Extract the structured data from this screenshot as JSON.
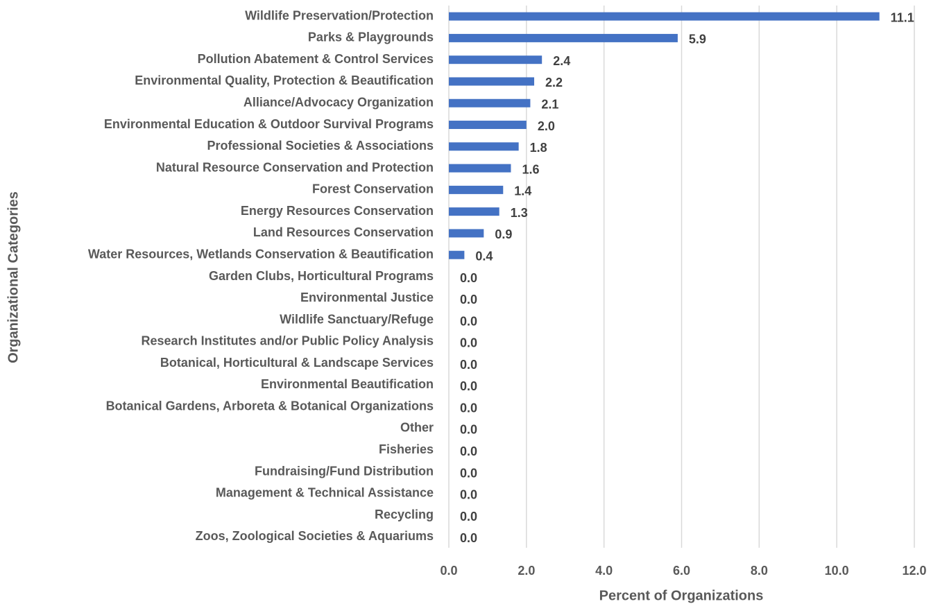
{
  "chart_data": {
    "type": "bar",
    "orientation": "horizontal",
    "xlabel": "Percent of Organizations",
    "ylabel": "Organizational Categories",
    "categories": [
      "Wildlife Preservation/Protection",
      "Parks & Playgrounds",
      "Pollution Abatement & Control Services",
      "Environmental Quality, Protection & Beautification",
      "Alliance/Advocacy Organization",
      "Environmental Education & Outdoor Survival Programs",
      "Professional Societies & Associations",
      "Natural Resource Conservation and Protection",
      "Forest Conservation",
      "Energy Resources Conservation",
      "Land Resources Conservation",
      "Water Resources, Wetlands Conservation & Beautification",
      "Garden Clubs, Horticultural Programs",
      "Environmental Justice",
      "Wildlife Sanctuary/Refuge",
      "Research Institutes and/or Public Policy Analysis",
      "Botanical, Horticultural & Landscape Services",
      "Environmental Beautification",
      "Botanical Gardens, Arboreta & Botanical Organizations",
      "Other",
      "Fisheries",
      "Fundraising/Fund Distribution",
      "Management & Technical Assistance",
      "Recycling",
      "Zoos, Zoological Societies & Aquariums"
    ],
    "values": [
      11.1,
      5.9,
      2.4,
      2.2,
      2.1,
      2,
      1.8,
      1.6,
      1.4,
      1.3,
      0.9,
      0.4,
      0,
      0,
      0,
      0,
      0,
      0,
      0,
      0,
      0,
      0,
      0,
      0,
      0
    ],
    "value_labels": [
      "11.1",
      "5.9",
      "2.4",
      "2.2",
      "2.1",
      "2.0",
      "1.8",
      "1.6",
      "1.4",
      "1.3",
      "0.9",
      "0.4",
      "0.0",
      "0.0",
      "0.0",
      "0.0",
      "0.0",
      "0.0",
      "0.0",
      "0.0",
      "0.0",
      "0.0",
      "0.0",
      "0.0",
      "0.0"
    ],
    "color": "#4472c4",
    "xlim": [
      0,
      12
    ],
    "xticks": [
      {
        "value": 0,
        "label": "0.0"
      },
      {
        "value": 2,
        "label": "2.0"
      },
      {
        "value": 4,
        "label": "4.0"
      },
      {
        "value": 6,
        "label": "6.0"
      },
      {
        "value": 8,
        "label": "8.0"
      },
      {
        "value": 10,
        "label": "10.0"
      },
      {
        "value": 12,
        "label": "12.0"
      }
    ],
    "grid": true
  }
}
